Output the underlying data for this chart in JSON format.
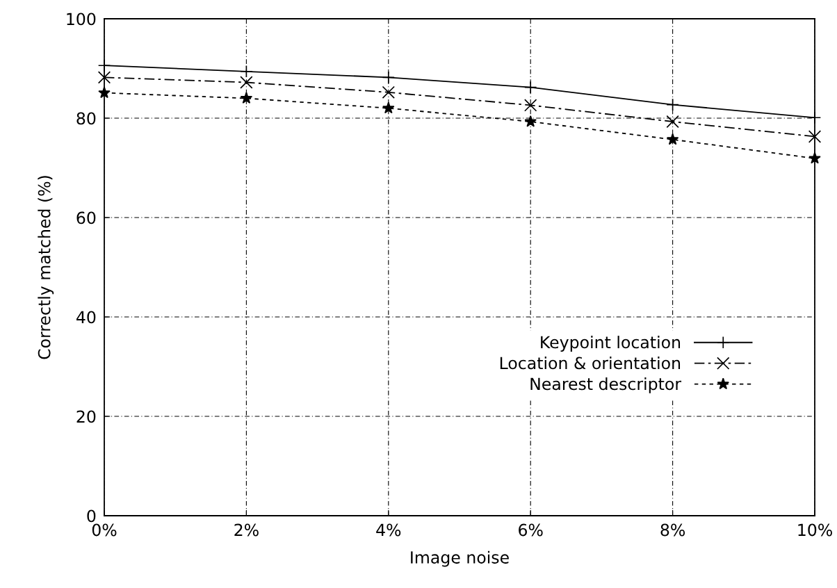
{
  "chart_data": {
    "type": "line",
    "xlabel": "Image noise",
    "ylabel": "Correctly matched (%)",
    "x": [
      0,
      2,
      4,
      6,
      8,
      10
    ],
    "xlim": [
      0,
      10
    ],
    "xticks": [
      {
        "value": 0,
        "label": "0%"
      },
      {
        "value": 2,
        "label": "2%"
      },
      {
        "value": 4,
        "label": "4%"
      },
      {
        "value": 6,
        "label": "6%"
      },
      {
        "value": 8,
        "label": "8%"
      },
      {
        "value": 10,
        "label": "10%"
      }
    ],
    "ylim": [
      0,
      100
    ],
    "yticks": [
      0,
      20,
      40,
      60,
      80,
      100
    ],
    "grid": true,
    "legend": "bottom right",
    "series": [
      {
        "name": "Keypoint location",
        "color": "#000000",
        "values": [
          90.6,
          89.4,
          88.2,
          86.2,
          82.7,
          80.1
        ],
        "marker": "cross",
        "line_style": "solid"
      },
      {
        "name": "Location & orientation",
        "color": "#000000",
        "values": [
          88.2,
          87.2,
          85.2,
          82.6,
          79.3,
          76.3
        ],
        "marker": "x",
        "line_style": "dashed"
      },
      {
        "name": "Nearest descriptor",
        "color": "#000000",
        "values": [
          85.1,
          84.0,
          82.0,
          79.3,
          75.7,
          71.9
        ],
        "marker": "star",
        "line_style": "dotted"
      }
    ]
  }
}
